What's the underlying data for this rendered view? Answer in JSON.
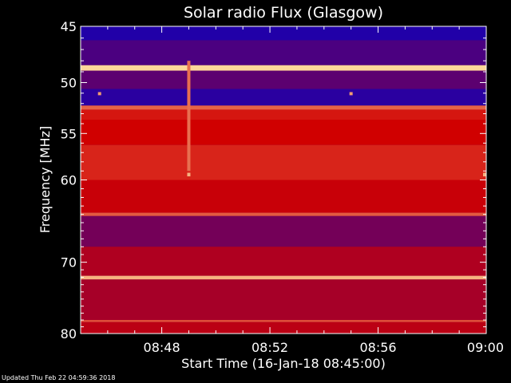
{
  "chart_data": {
    "type": "heatmap",
    "title": "Solar radio Flux (Glasgow)",
    "xlabel": "Start Time (16-Jan-18 08:45:00)",
    "ylabel": "Frequency [MHz]",
    "x_ticks": [
      {
        "minutes": 3,
        "label": "08:48"
      },
      {
        "minutes": 7,
        "label": "08:52"
      },
      {
        "minutes": 11,
        "label": "08:56"
      },
      {
        "minutes": 15,
        "label": "09:00"
      }
    ],
    "xlim_minutes": [
      0,
      15
    ],
    "y_ticks": [
      {
        "value": 45,
        "label": "45"
      },
      {
        "value": 50,
        "label": "50"
      },
      {
        "value": 55,
        "label": "55"
      },
      {
        "value": 60,
        "label": "60"
      },
      {
        "value": 70,
        "label": "70"
      },
      {
        "value": 80,
        "label": "80"
      }
    ],
    "ylim": [
      45,
      80
    ],
    "y_scale": "log",
    "colors": {
      "low": "#0000c8",
      "mid": "#d00000",
      "high": "#ffe0a0"
    },
    "bands": [
      {
        "freq_start": 45.0,
        "freq_end": 46.2,
        "intensity": 0.08
      },
      {
        "freq_start": 46.2,
        "freq_end": 48.4,
        "intensity": 0.18
      },
      {
        "freq_start": 48.4,
        "freq_end": 48.9,
        "intensity": 0.98
      },
      {
        "freq_start": 48.9,
        "freq_end": 50.6,
        "intensity": 0.22
      },
      {
        "freq_start": 50.6,
        "freq_end": 52.2,
        "intensity": 0.1
      },
      {
        "freq_start": 52.2,
        "freq_end": 52.6,
        "intensity": 0.72
      },
      {
        "freq_start": 52.6,
        "freq_end": 53.6,
        "intensity": 0.55
      },
      {
        "freq_start": 53.6,
        "freq_end": 56.2,
        "intensity": 0.5
      },
      {
        "freq_start": 56.2,
        "freq_end": 60.0,
        "intensity": 0.58
      },
      {
        "freq_start": 60.0,
        "freq_end": 63.8,
        "intensity": 0.48
      },
      {
        "freq_start": 63.8,
        "freq_end": 64.2,
        "intensity": 0.7
      },
      {
        "freq_start": 64.2,
        "freq_end": 68.0,
        "intensity": 0.28
      },
      {
        "freq_start": 68.0,
        "freq_end": 71.8,
        "intensity": 0.42
      },
      {
        "freq_start": 71.8,
        "freq_end": 72.3,
        "intensity": 0.9
      },
      {
        "freq_start": 72.3,
        "freq_end": 78.0,
        "intensity": 0.4
      },
      {
        "freq_start": 78.0,
        "freq_end": 78.3,
        "intensity": 0.68
      },
      {
        "freq_start": 78.3,
        "freq_end": 80.0,
        "intensity": 0.45
      }
    ],
    "bursts": [
      {
        "minutes": 4.0,
        "freq_start": 48.0,
        "freq_end": 59.0,
        "intensity": 0.75
      },
      {
        "minutes": 0.7,
        "freq_start": 50.9,
        "freq_end": 51.2,
        "intensity": 0.85
      },
      {
        "minutes": 10.0,
        "freq_start": 50.9,
        "freq_end": 51.2,
        "intensity": 0.85
      },
      {
        "minutes": 4.0,
        "freq_start": 59.2,
        "freq_end": 59.6,
        "intensity": 0.9
      },
      {
        "minutes": 14.95,
        "freq_start": 59.2,
        "freq_end": 59.6,
        "intensity": 0.9
      }
    ]
  },
  "footer": {
    "text": "Updated Thu Feb 22 04:59:36 2018"
  }
}
